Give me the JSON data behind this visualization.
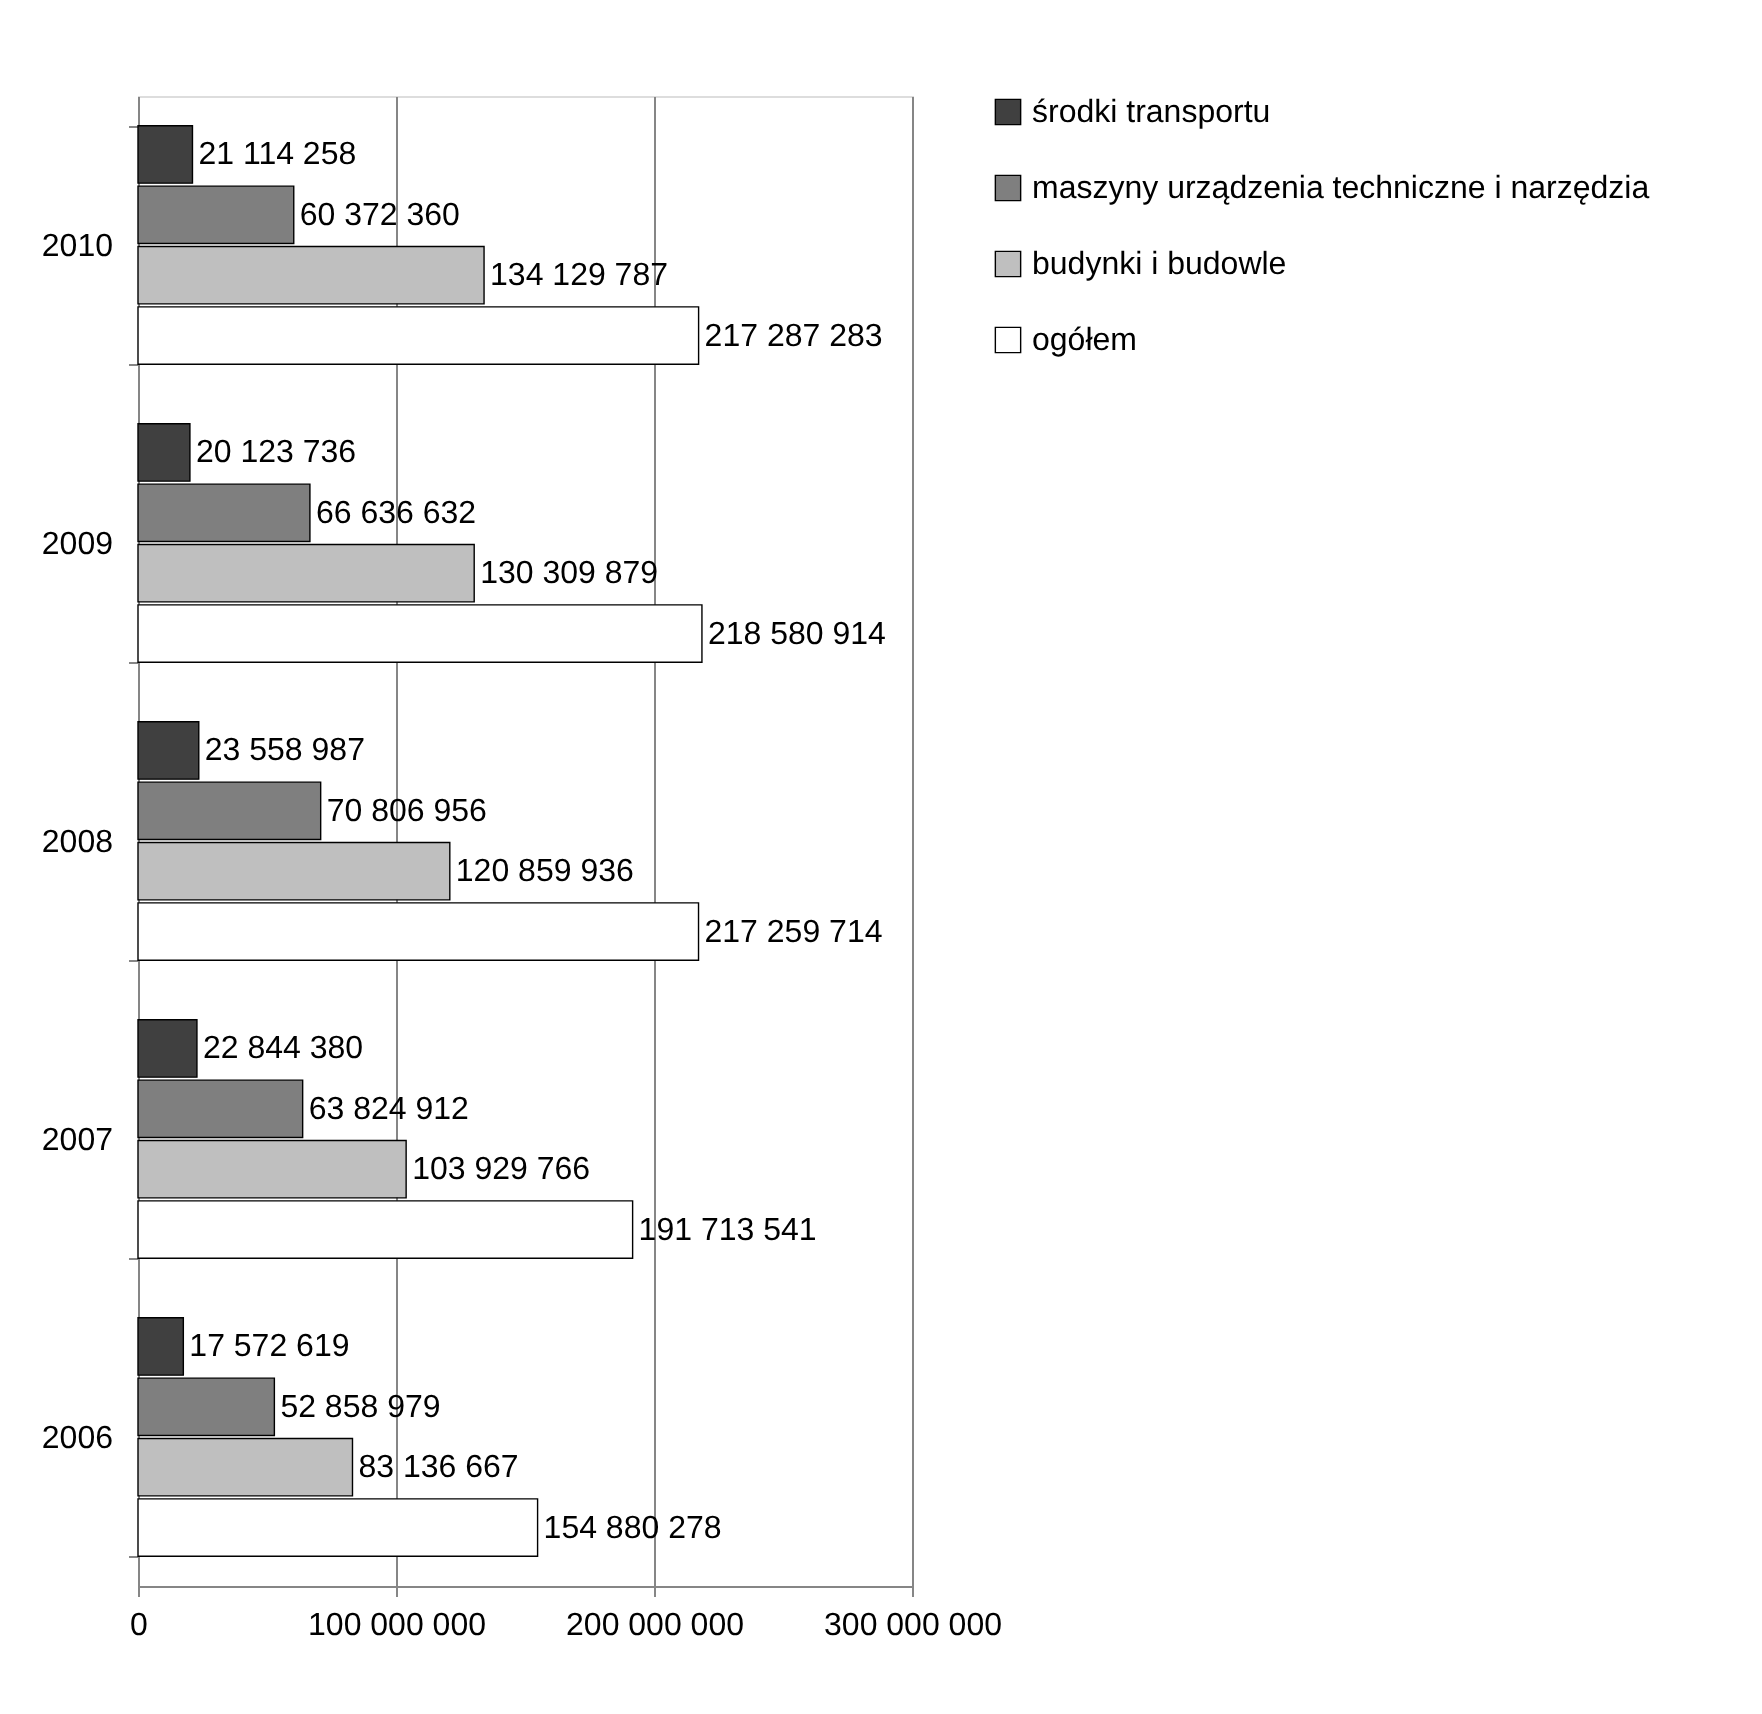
{
  "chart_data": {
    "type": "bar",
    "orientation": "horizontal",
    "categories": [
      "2010",
      "2009",
      "2008",
      "2007",
      "2006"
    ],
    "series": [
      {
        "name": "środki transportu",
        "color": "#404040",
        "values": [
          21114258,
          20123736,
          23558987,
          22844380,
          17572619
        ],
        "value_labels": [
          "21 114 258",
          "20 123 736",
          "23 558 987",
          "22 844 380",
          "17 572 619"
        ]
      },
      {
        "name": "maszyny urządzenia techniczne i narzędzia",
        "color": "#7f7f7f",
        "values": [
          60372360,
          66636632,
          70806956,
          63824912,
          52858979
        ],
        "value_labels": [
          "60 372 360",
          "66 636 632",
          "70 806 956",
          "63 824 912",
          "52 858 979"
        ]
      },
      {
        "name": "budynki i budowle",
        "color": "#bfbfbf",
        "values": [
          134129787,
          130309879,
          120859936,
          103929766,
          83136667
        ],
        "value_labels": [
          "134 129 787",
          "130 309 879",
          "120 859 936",
          "103 929 766",
          "83 136 667"
        ]
      },
      {
        "name": "ogółem",
        "color": "#ffffff",
        "values": [
          217287283,
          218580914,
          217259714,
          191713541,
          154880278
        ],
        "value_labels": [
          "217 287 283",
          "218 580 914",
          "217 259 714",
          "191 713 541",
          "154 880 278"
        ]
      }
    ],
    "xlim": [
      0,
      300000000
    ],
    "xticks": [
      0,
      {
        "value": 100000000,
        "label": "100 000 000"
      },
      {
        "value": 200000000,
        "label": "200 000 000"
      },
      {
        "value": 300000000,
        "label": "300 000 000"
      }
    ],
    "grid": "x",
    "legend": "right"
  }
}
